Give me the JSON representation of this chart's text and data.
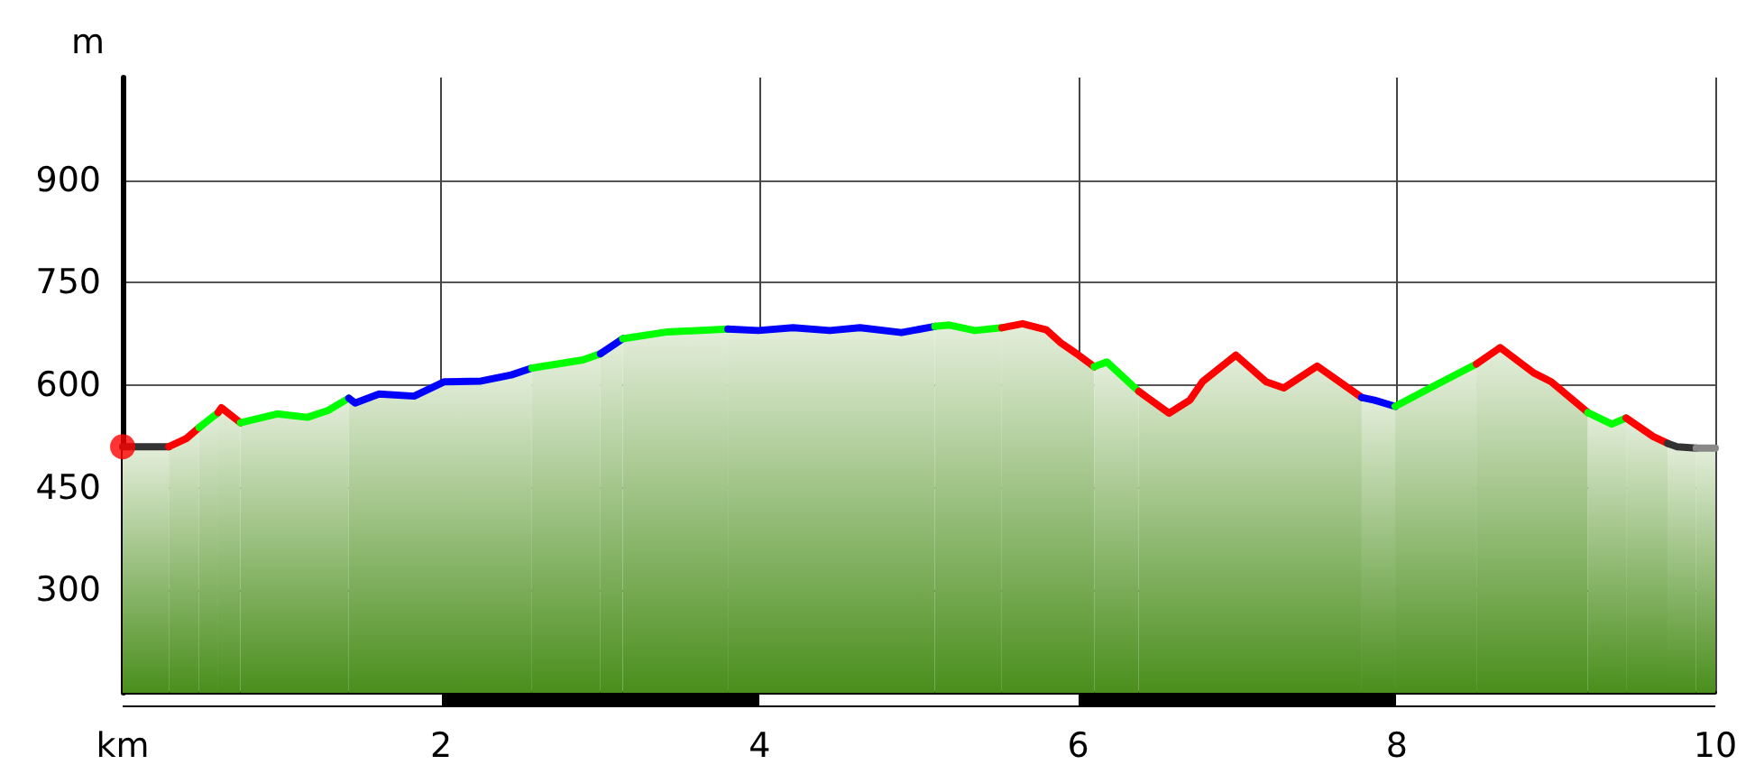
{
  "chart_data": {
    "type": "area",
    "ylabel": "m",
    "xlim": [
      0,
      10
    ],
    "xticks": [
      {
        "value": 0,
        "label": "km"
      },
      2,
      4,
      6,
      8,
      10
    ],
    "ylim": [
      150,
      1050
    ],
    "yticks": [
      300,
      450,
      600,
      750,
      900
    ],
    "grid": true,
    "marker": "none",
    "line_style": "solid",
    "series": [
      {
        "color": "#333333",
        "x": [
          0,
          0.29
        ],
        "values": [
          510,
          510
        ]
      },
      {
        "color": "#ff0000",
        "x": [
          0.29,
          0.4,
          0.48
        ],
        "values": [
          510,
          522,
          538
        ]
      },
      {
        "color": "#00ff00",
        "x": [
          0.48,
          0.54,
          0.6
        ],
        "values": [
          538,
          549,
          560
        ]
      },
      {
        "color": "#ff0000",
        "x": [
          0.6,
          0.62,
          0.68,
          0.74
        ],
        "values": [
          560,
          567,
          556,
          545
        ]
      },
      {
        "color": "#00ff00",
        "x": [
          0.74,
          0.97,
          1.16,
          1.29,
          1.42
        ],
        "values": [
          545,
          558,
          553,
          563,
          581
        ]
      },
      {
        "color": "#0000ff",
        "x": [
          1.42,
          1.46,
          1.61,
          1.83,
          2.02,
          2.25,
          2.44,
          2.57
        ],
        "values": [
          581,
          574,
          587,
          584,
          605,
          606,
          615,
          625
        ]
      },
      {
        "color": "#00ff00",
        "x": [
          2.57,
          2.89,
          3.0
        ],
        "values": [
          625,
          637,
          646
        ]
      },
      {
        "color": "#0000ff",
        "x": [
          3.0,
          3.14
        ],
        "values": [
          646,
          668
        ]
      },
      {
        "color": "#00ff00",
        "x": [
          3.14,
          3.42,
          3.8
        ],
        "values": [
          668,
          678,
          682
        ]
      },
      {
        "color": "#0000ff",
        "x": [
          3.8,
          3.99,
          4.21,
          4.44,
          4.63,
          4.89,
          5.1
        ],
        "values": [
          682,
          680,
          684,
          680,
          684,
          677,
          686
        ]
      },
      {
        "color": "#00ff00",
        "x": [
          5.1,
          5.19,
          5.35,
          5.52
        ],
        "values": [
          686,
          688,
          680,
          684
        ]
      },
      {
        "color": "#ff0000",
        "x": [
          5.52,
          5.65,
          5.8,
          5.89,
          5.99,
          6.1
        ],
        "values": [
          684,
          690,
          681,
          662,
          646,
          627
        ]
      },
      {
        "color": "#00ff00",
        "x": [
          6.1,
          6.18,
          6.38
        ],
        "values": [
          627,
          634,
          591
        ]
      },
      {
        "color": "#ff0000",
        "x": [
          6.38,
          6.57,
          6.7,
          6.78,
          6.99,
          7.18,
          7.29,
          7.5,
          7.78
        ],
        "values": [
          591,
          559,
          578,
          605,
          644,
          605,
          596,
          628,
          582
        ]
      },
      {
        "color": "#0000ff",
        "x": [
          7.78,
          7.86,
          7.99
        ],
        "values": [
          582,
          578,
          569
        ]
      },
      {
        "color": "#00ff00",
        "x": [
          7.99,
          8.21,
          8.5
        ],
        "values": [
          569,
          596,
          631
        ]
      },
      {
        "color": "#ff0000",
        "x": [
          8.5,
          8.65,
          8.86,
          8.97,
          9.2
        ],
        "values": [
          631,
          655,
          618,
          605,
          560
        ]
      },
      {
        "color": "#00ff00",
        "x": [
          9.2,
          9.35,
          9.44
        ],
        "values": [
          560,
          543,
          552
        ]
      },
      {
        "color": "#ff0000",
        "x": [
          9.44,
          9.61,
          9.7
        ],
        "values": [
          552,
          525,
          515
        ]
      },
      {
        "color": "#333333",
        "x": [
          9.7,
          9.76,
          9.88
        ],
        "values": [
          515,
          510,
          508
        ]
      },
      {
        "color": "#888888",
        "x": [
          9.88,
          10
        ],
        "values": [
          508,
          508
        ]
      },
      {
        "type": "scatter",
        "marker": "circle",
        "color": "#ff0000",
        "x": [
          0
        ],
        "values": [
          510
        ]
      }
    ]
  }
}
